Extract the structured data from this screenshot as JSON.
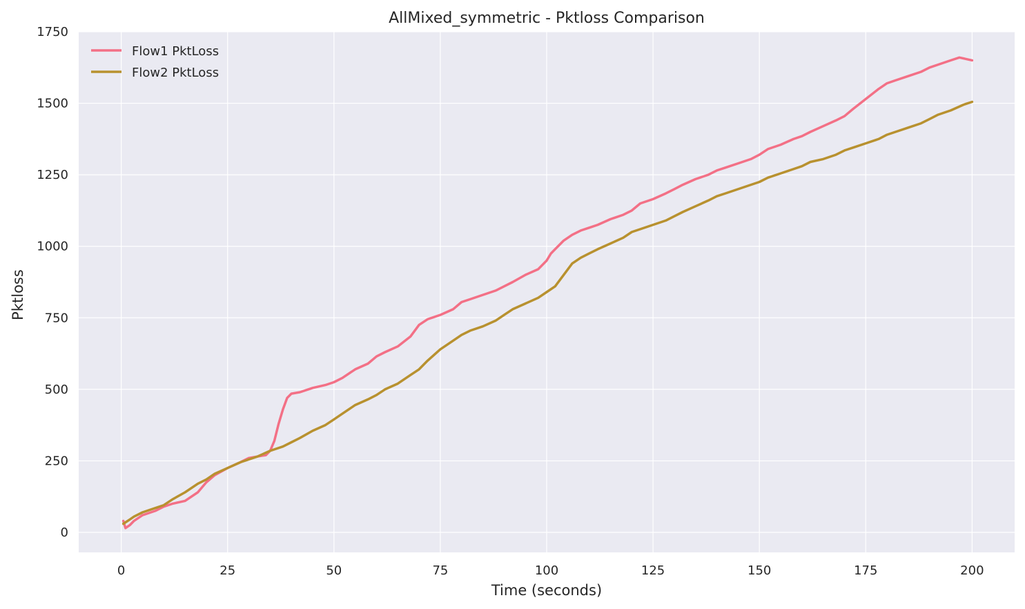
{
  "chart_data": {
    "type": "line",
    "title": "AllMixed_symmetric - Pktloss Comparison",
    "xlabel": "Time (seconds)",
    "ylabel": "Pktloss",
    "xlim": [
      -10,
      210
    ],
    "ylim": [
      -70,
      1750
    ],
    "xticks": [
      0,
      25,
      50,
      75,
      100,
      125,
      150,
      175,
      200
    ],
    "yticks": [
      0,
      250,
      500,
      750,
      1000,
      1250,
      1500,
      1750
    ],
    "grid": true,
    "legend_position": "top-left",
    "background": "#eaeaf2",
    "series": [
      {
        "name": "Flow1 PktLoss",
        "color": "#f37086",
        "x": [
          0.5,
          1,
          2,
          3,
          5,
          8,
          10,
          12,
          15,
          18,
          20,
          22,
          25,
          28,
          30,
          32,
          34,
          35,
          36,
          37,
          38,
          39,
          40,
          42,
          45,
          48,
          50,
          52,
          55,
          58,
          60,
          62,
          65,
          68,
          70,
          72,
          75,
          78,
          80,
          82,
          85,
          88,
          90,
          92,
          95,
          98,
          100,
          101,
          102,
          104,
          106,
          108,
          110,
          112,
          115,
          118,
          120,
          122,
          125,
          128,
          130,
          132,
          135,
          138,
          140,
          142,
          145,
          148,
          150,
          152,
          155,
          158,
          160,
          162,
          165,
          168,
          170,
          172,
          175,
          178,
          180,
          182,
          185,
          188,
          190,
          192,
          195,
          197,
          200
        ],
        "y": [
          40,
          15,
          25,
          40,
          60,
          75,
          90,
          100,
          110,
          140,
          175,
          200,
          225,
          245,
          260,
          265,
          270,
          285,
          320,
          380,
          430,
          470,
          485,
          490,
          505,
          515,
          525,
          540,
          570,
          590,
          615,
          630,
          650,
          685,
          725,
          745,
          760,
          780,
          805,
          815,
          830,
          845,
          860,
          875,
          900,
          920,
          950,
          975,
          990,
          1020,
          1040,
          1055,
          1065,
          1075,
          1095,
          1110,
          1125,
          1150,
          1165,
          1185,
          1200,
          1215,
          1235,
          1250,
          1265,
          1275,
          1290,
          1305,
          1320,
          1340,
          1355,
          1375,
          1385,
          1400,
          1420,
          1440,
          1455,
          1480,
          1515,
          1550,
          1570,
          1580,
          1595,
          1610,
          1625,
          1635,
          1650,
          1660,
          1650
        ]
      },
      {
        "name": "Flow2 PktLoss",
        "color": "#b8912f",
        "x": [
          0.5,
          1,
          2,
          3,
          5,
          8,
          10,
          12,
          15,
          18,
          20,
          22,
          25,
          28,
          30,
          32,
          35,
          38,
          40,
          42,
          45,
          48,
          50,
          52,
          55,
          58,
          60,
          62,
          65,
          68,
          70,
          72,
          75,
          78,
          80,
          82,
          85,
          88,
          90,
          92,
          95,
          98,
          100,
          102,
          104,
          106,
          108,
          110,
          112,
          115,
          118,
          120,
          122,
          125,
          128,
          130,
          132,
          135,
          138,
          140,
          142,
          145,
          148,
          150,
          152,
          155,
          158,
          160,
          162,
          165,
          168,
          170,
          172,
          175,
          178,
          180,
          182,
          185,
          188,
          190,
          192,
          195,
          198,
          200
        ],
        "y": [
          30,
          35,
          45,
          55,
          70,
          85,
          95,
          115,
          140,
          170,
          185,
          205,
          225,
          245,
          255,
          265,
          285,
          300,
          315,
          330,
          355,
          375,
          395,
          415,
          445,
          465,
          480,
          500,
          520,
          550,
          570,
          600,
          640,
          670,
          690,
          705,
          720,
          740,
          760,
          780,
          800,
          820,
          840,
          860,
          900,
          940,
          960,
          975,
          990,
          1010,
          1030,
          1050,
          1060,
          1075,
          1090,
          1105,
          1120,
          1140,
          1160,
          1175,
          1185,
          1200,
          1215,
          1225,
          1240,
          1255,
          1270,
          1280,
          1295,
          1305,
          1320,
          1335,
          1345,
          1360,
          1375,
          1390,
          1400,
          1415,
          1430,
          1445,
          1460,
          1475,
          1495,
          1505
        ]
      }
    ]
  }
}
